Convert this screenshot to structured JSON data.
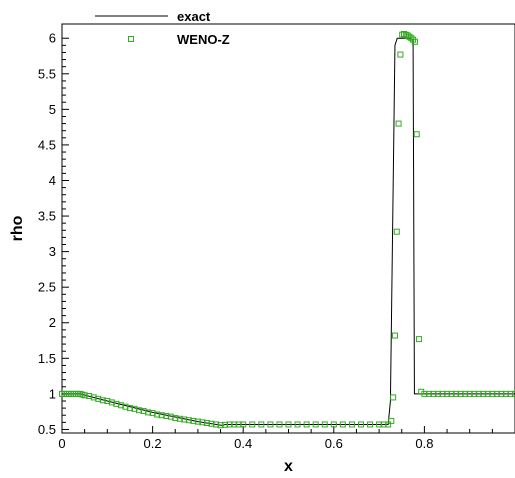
{
  "chart_data": {
    "type": "line",
    "xlabel": "x",
    "ylabel": "rho",
    "xlim": [
      0,
      1
    ],
    "ylim": [
      0.45,
      6.2
    ],
    "xticks": [
      0,
      0.2,
      0.4,
      0.6,
      0.8
    ],
    "xtick_labels": [
      "0",
      "0.2",
      "0.4",
      "0.6",
      "0.8"
    ],
    "yticks": [
      0.5,
      1,
      1.5,
      2,
      2.5,
      3,
      3.5,
      4,
      4.5,
      5,
      5.5,
      6
    ],
    "ytick_labels": [
      "0.5",
      "1",
      "1.5",
      "2",
      "2.5",
      "3",
      "3.5",
      "4",
      "4.5",
      "5",
      "5.5",
      "6"
    ],
    "grid": false,
    "legend_position": "top-left",
    "series": [
      {
        "name": "exact",
        "style": "line",
        "color": "#000000",
        "x": [
          0.0,
          0.04,
          0.1,
          0.2,
          0.3,
          0.355,
          0.36,
          0.72,
          0.725,
          0.735,
          0.74,
          0.765,
          0.775,
          0.778,
          0.79,
          1.0
        ],
        "y": [
          1.0,
          1.0,
          0.9,
          0.74,
          0.61,
          0.555,
          0.57,
          0.57,
          0.9,
          5.9,
          6.0,
          6.0,
          5.98,
          1.0,
          1.0,
          1.0
        ]
      },
      {
        "name": "WENO-Z",
        "style": "markers",
        "color": "#33aa22",
        "x": [
          0.0,
          0.005,
          0.01,
          0.015,
          0.02,
          0.025,
          0.03,
          0.035,
          0.04,
          0.045,
          0.05,
          0.06,
          0.07,
          0.08,
          0.09,
          0.1,
          0.11,
          0.12,
          0.13,
          0.14,
          0.15,
          0.16,
          0.17,
          0.18,
          0.19,
          0.2,
          0.21,
          0.22,
          0.23,
          0.24,
          0.25,
          0.26,
          0.27,
          0.28,
          0.29,
          0.3,
          0.31,
          0.32,
          0.33,
          0.34,
          0.35,
          0.36,
          0.37,
          0.38,
          0.39,
          0.4,
          0.42,
          0.44,
          0.46,
          0.48,
          0.5,
          0.52,
          0.54,
          0.56,
          0.58,
          0.6,
          0.62,
          0.64,
          0.66,
          0.68,
          0.7,
          0.71,
          0.72,
          0.727,
          0.731,
          0.735,
          0.739,
          0.743,
          0.747,
          0.751,
          0.755,
          0.759,
          0.763,
          0.767,
          0.771,
          0.775,
          0.779,
          0.783,
          0.788,
          0.793,
          0.8,
          0.81,
          0.82,
          0.83,
          0.84,
          0.85,
          0.86,
          0.87,
          0.88,
          0.89,
          0.9,
          0.91,
          0.92,
          0.93,
          0.94,
          0.95,
          0.96,
          0.97,
          0.98,
          0.99,
          1.0
        ],
        "y": [
          1.0,
          1.0,
          1.0,
          1.0,
          1.0,
          1.0,
          1.0,
          1.0,
          1.0,
          0.99,
          0.98,
          0.97,
          0.95,
          0.93,
          0.91,
          0.9,
          0.88,
          0.86,
          0.84,
          0.82,
          0.8,
          0.79,
          0.77,
          0.76,
          0.74,
          0.73,
          0.71,
          0.7,
          0.69,
          0.68,
          0.66,
          0.65,
          0.64,
          0.63,
          0.62,
          0.61,
          0.6,
          0.59,
          0.58,
          0.57,
          0.56,
          0.565,
          0.57,
          0.57,
          0.57,
          0.57,
          0.57,
          0.57,
          0.57,
          0.57,
          0.57,
          0.57,
          0.57,
          0.57,
          0.57,
          0.57,
          0.57,
          0.57,
          0.57,
          0.57,
          0.57,
          0.57,
          0.57,
          0.62,
          0.95,
          1.82,
          3.28,
          4.8,
          5.77,
          6.05,
          6.06,
          6.05,
          6.04,
          6.02,
          6.0,
          5.98,
          5.95,
          4.65,
          1.77,
          1.03,
          1.0,
          1.0,
          1.0,
          1.0,
          1.0,
          1.0,
          1.0,
          1.0,
          1.0,
          1.0,
          1.0,
          1.0,
          1.0,
          1.0,
          1.0,
          1.0,
          1.0,
          1.0,
          1.0,
          1.0,
          1.0
        ]
      }
    ]
  },
  "legend": {
    "items": [
      {
        "label": "exact",
        "marker": "line"
      },
      {
        "label": "WENO-Z",
        "marker": "square"
      }
    ]
  }
}
